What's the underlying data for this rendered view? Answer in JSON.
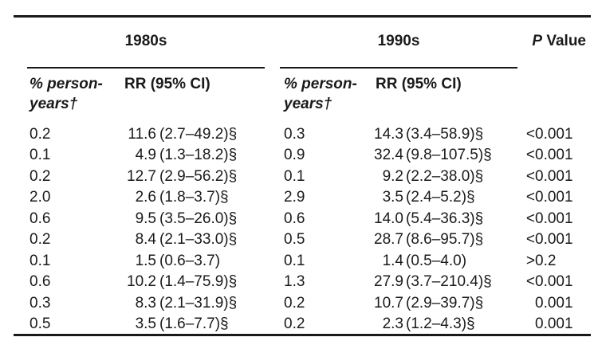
{
  "table": {
    "group_headers": {
      "decade_1980s": "1980s",
      "decade_1990s": "1990s"
    },
    "p_value_header": {
      "p_italic": "P",
      "rest": " Value"
    },
    "column_headers": {
      "person_years_line1": "% person-",
      "person_years_line2": "years†",
      "rr_ci": "RR (95% CI)"
    },
    "rows": [
      {
        "py_1980s": "0.2",
        "rr_1980s": "11.6",
        "ci_1980s": "(2.7–49.2)§",
        "py_1990s": "0.3",
        "rr_1990s": "14.3",
        "ci_1990s": "(3.4–58.9)§",
        "p_prefix": "<",
        "p_value": "0.001"
      },
      {
        "py_1980s": "0.1",
        "rr_1980s": "4.9",
        "ci_1980s": "(1.3–18.2)§",
        "py_1990s": "0.9",
        "rr_1990s": "32.4",
        "ci_1990s": "(9.8–107.5)§",
        "p_prefix": "<",
        "p_value": "0.001"
      },
      {
        "py_1980s": "0.2",
        "rr_1980s": "12.7",
        "ci_1980s": "(2.9–56.2)§",
        "py_1990s": "0.1",
        "rr_1990s": "9.2",
        "ci_1990s": "(2.2–38.0)§",
        "p_prefix": "<",
        "p_value": "0.001"
      },
      {
        "py_1980s": "2.0",
        "rr_1980s": "2.6",
        "ci_1980s": "(1.8–3.7)§",
        "py_1990s": "2.9",
        "rr_1990s": "3.5",
        "ci_1990s": "(2.4–5.2)§",
        "p_prefix": "<",
        "p_value": "0.001"
      },
      {
        "py_1980s": "0.6",
        "rr_1980s": "9.5",
        "ci_1980s": "(3.5–26.0)§",
        "py_1990s": "0.6",
        "rr_1990s": "14.0",
        "ci_1990s": "(5.4–36.3)§",
        "p_prefix": "<",
        "p_value": "0.001"
      },
      {
        "py_1980s": "0.2",
        "rr_1980s": "8.4",
        "ci_1980s": "(2.1–33.0)§",
        "py_1990s": "0.5",
        "rr_1990s": "28.7",
        "ci_1990s": "(8.6–95.7)§",
        "p_prefix": "<",
        "p_value": "0.001"
      },
      {
        "py_1980s": "0.1",
        "rr_1980s": "1.5",
        "ci_1980s": "(0.6–3.7)",
        "py_1990s": "0.1",
        "rr_1990s": "1.4",
        "ci_1990s": "(0.5–4.0)",
        "p_prefix": ">",
        "p_value": "0.2"
      },
      {
        "py_1980s": "0.6",
        "rr_1980s": "10.2",
        "ci_1980s": "(1.4–75.9)§",
        "py_1990s": "1.3",
        "rr_1990s": "27.9",
        "ci_1990s": "(3.7–210.4)§",
        "p_prefix": "<",
        "p_value": "0.001"
      },
      {
        "py_1980s": "0.3",
        "rr_1980s": "8.3",
        "ci_1980s": "(2.1–31.9)§",
        "py_1990s": "0.2",
        "rr_1990s": "10.7",
        "ci_1990s": "(2.9–39.7)§",
        "p_prefix": "",
        "p_value": "0.001"
      },
      {
        "py_1980s": "0.5",
        "rr_1980s": "3.5",
        "ci_1980s": "(1.6–7.7)§",
        "py_1990s": "0.2",
        "rr_1990s": "2.3",
        "ci_1990s": "(1.2–4.3)§",
        "p_prefix": "",
        "p_value": "0.001"
      }
    ]
  },
  "colors": {
    "text": "#1a1a1a",
    "rule": "#1a1a1a",
    "background": "#ffffff"
  }
}
